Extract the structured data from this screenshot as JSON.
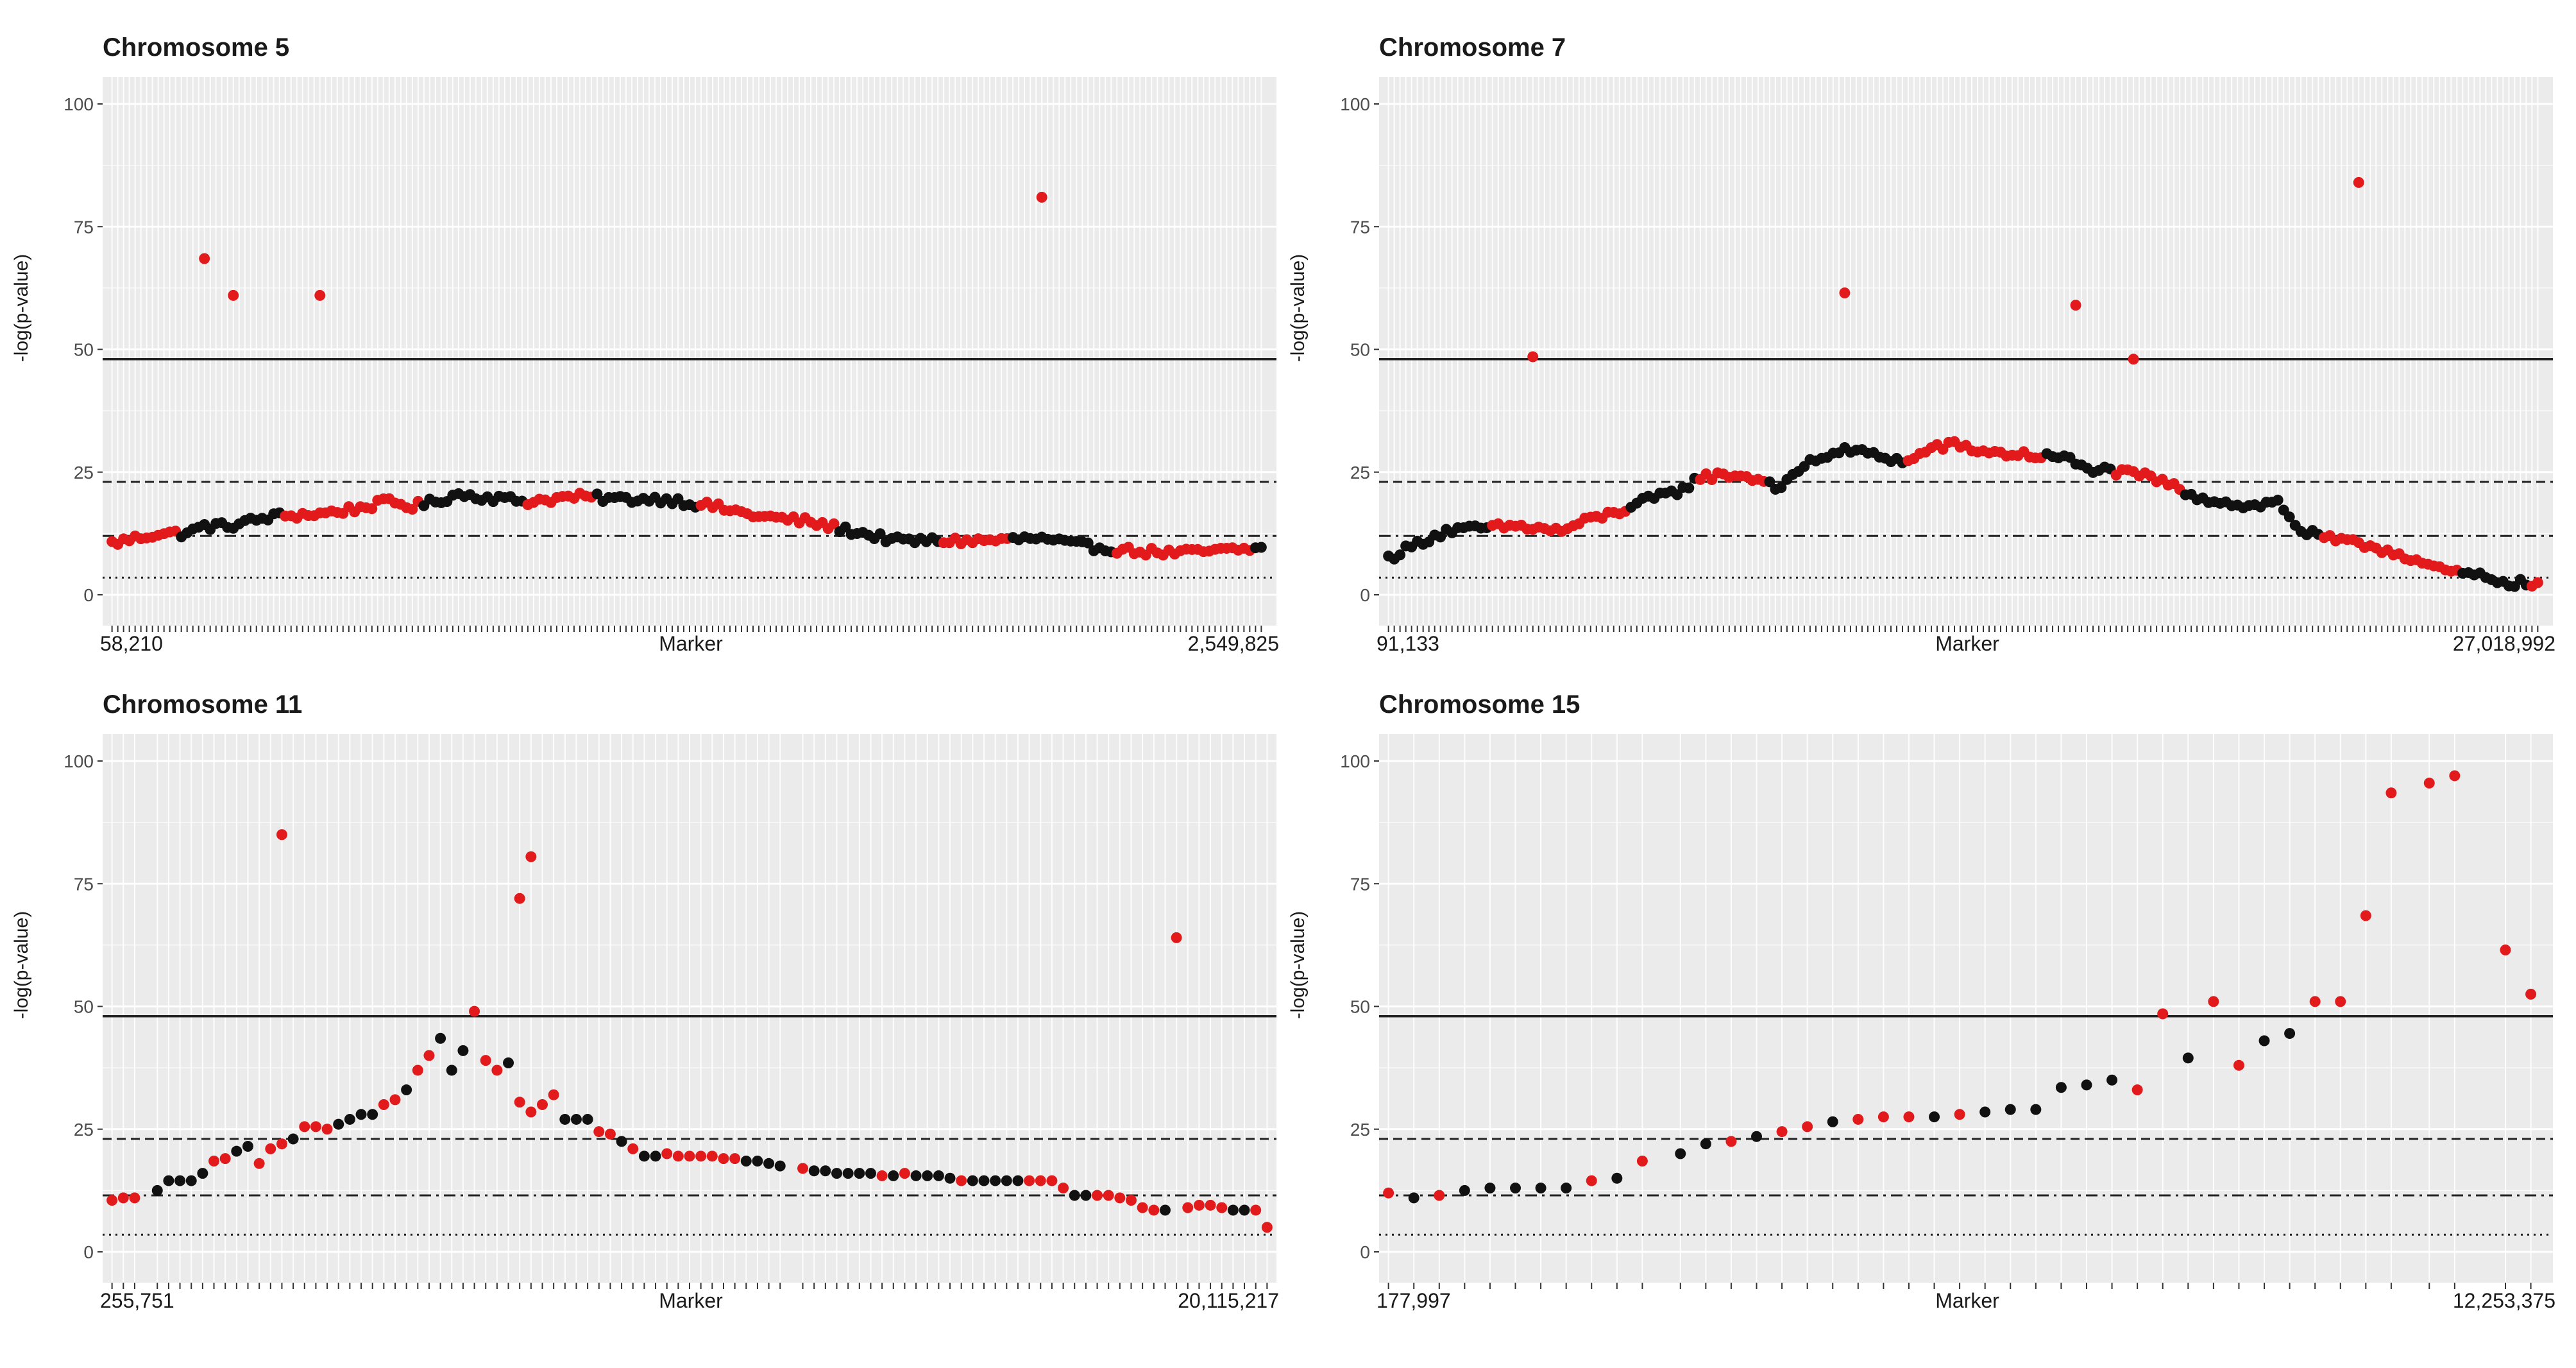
{
  "colors": {
    "panel_bg": "#ebebeb",
    "grid_major": "#ffffff",
    "significant": "#e31a1c",
    "nonsignificant": "#111111",
    "threshold_line": "#222222",
    "axis_text": "#4d4d4d"
  },
  "chart_data": [
    {
      "type": "scatter",
      "title": "Chromosome 5",
      "xlabel": "Marker",
      "ylabel": "-log(p-value)",
      "ylim": [
        0,
        100
      ],
      "yticks": [
        "0",
        "25",
        "50",
        "75",
        "100"
      ],
      "x_first_label": "58,210",
      "x_last_label": "2,549,825",
      "n_markers": 200,
      "thresholds": [
        {
          "style": "solid",
          "y": 48
        },
        {
          "style": "dashed",
          "y": 23
        },
        {
          "style": "dotdash",
          "y": 12
        },
        {
          "style": "dotted",
          "y": 3.5
        }
      ],
      "profile": [
        [
          0,
          10.5
        ],
        [
          4,
          11.5
        ],
        [
          8,
          12.5
        ],
        [
          12,
          12.5
        ],
        [
          14,
          13
        ],
        [
          16,
          14
        ],
        [
          20,
          14
        ],
        [
          24,
          15
        ],
        [
          28,
          16
        ],
        [
          36,
          16.5
        ],
        [
          42,
          17.5
        ],
        [
          48,
          19
        ],
        [
          52,
          18
        ],
        [
          56,
          19
        ],
        [
          60,
          20.5
        ],
        [
          64,
          20
        ],
        [
          72,
          19
        ],
        [
          80,
          20
        ],
        [
          88,
          19.5
        ],
        [
          96,
          19.5
        ],
        [
          104,
          18
        ],
        [
          112,
          16
        ],
        [
          120,
          15
        ],
        [
          128,
          13
        ],
        [
          132,
          12
        ],
        [
          136,
          11
        ],
        [
          150,
          11
        ],
        [
          160,
          11.5
        ],
        [
          168,
          10
        ],
        [
          176,
          9
        ],
        [
          184,
          8.5
        ],
        [
          200,
          9.5
        ]
      ],
      "profile_pattern": [
        1,
        1,
        0,
        0,
        0,
        1,
        1,
        1,
        1,
        0,
        0,
        0
      ],
      "outliers": [
        [
          16,
          68.5
        ],
        [
          21,
          61
        ],
        [
          36,
          61
        ],
        [
          161,
          81
        ]
      ]
    },
    {
      "type": "scatter",
      "title": "Chromosome 7",
      "xlabel": "Marker",
      "ylabel": "-log(p-value)",
      "ylim": [
        0,
        100
      ],
      "yticks": [
        "0",
        "25",
        "50",
        "75",
        "100"
      ],
      "x_first_label": "91,133",
      "x_last_label": "27,018,992",
      "n_markers": 200,
      "thresholds": [
        {
          "style": "solid",
          "y": 48
        },
        {
          "style": "dashed",
          "y": 23
        },
        {
          "style": "dotdash",
          "y": 12
        },
        {
          "style": "dotted",
          "y": 3.5
        }
      ],
      "profile": [
        [
          0,
          7.5
        ],
        [
          6,
          11
        ],
        [
          10,
          13
        ],
        [
          16,
          13.5
        ],
        [
          22,
          14
        ],
        [
          26,
          13.5
        ],
        [
          30,
          13
        ],
        [
          34,
          15
        ],
        [
          40,
          17
        ],
        [
          44,
          19
        ],
        [
          50,
          21
        ],
        [
          54,
          24
        ],
        [
          60,
          24.5
        ],
        [
          66,
          23
        ],
        [
          68,
          21.5
        ],
        [
          72,
          26.5
        ],
        [
          76,
          28.5
        ],
        [
          80,
          29.5
        ],
        [
          86,
          28
        ],
        [
          90,
          27
        ],
        [
          94,
          30
        ],
        [
          98,
          30.5
        ],
        [
          104,
          29
        ],
        [
          110,
          28.5
        ],
        [
          116,
          28
        ],
        [
          118,
          27.5
        ],
        [
          120,
          26
        ],
        [
          126,
          25
        ],
        [
          132,
          24
        ],
        [
          140,
          20
        ],
        [
          146,
          18.5
        ],
        [
          150,
          18
        ],
        [
          154,
          19
        ],
        [
          158,
          13
        ],
        [
          164,
          11
        ],
        [
          170,
          10
        ],
        [
          176,
          8
        ],
        [
          182,
          5
        ],
        [
          188,
          4
        ],
        [
          194,
          2.5
        ],
        [
          200,
          2
        ]
      ],
      "profile_pattern": [
        0,
        0,
        0,
        1,
        1,
        1,
        1,
        0,
        0,
        1,
        1,
        0
      ],
      "outliers": [
        [
          25,
          48.5
        ],
        [
          79,
          61.5
        ],
        [
          119,
          59
        ],
        [
          129,
          48
        ],
        [
          168,
          84
        ]
      ]
    },
    {
      "type": "scatter",
      "title": "Chromosome 11",
      "xlabel": "Marker",
      "ylabel": "-log(p-value)",
      "ylim": [
        0,
        100
      ],
      "yticks": [
        "0",
        "25",
        "50",
        "75",
        "100"
      ],
      "x_first_label": "255,751",
      "x_last_label": "20,115,217",
      "points": [
        [
          0,
          10.5,
          1
        ],
        [
          2,
          11,
          1
        ],
        [
          4,
          11,
          1
        ],
        [
          8,
          12.5,
          0
        ],
        [
          10,
          14.5,
          0
        ],
        [
          12,
          14.5,
          0
        ],
        [
          14,
          14.5,
          0
        ],
        [
          16,
          16,
          0
        ],
        [
          18,
          18.5,
          1
        ],
        [
          20,
          19,
          1
        ],
        [
          22,
          20.5,
          0
        ],
        [
          24,
          21.5,
          0
        ],
        [
          26,
          18,
          1
        ],
        [
          28,
          21,
          1
        ],
        [
          30,
          22,
          1
        ],
        [
          32,
          23,
          0
        ],
        [
          34,
          25.5,
          1
        ],
        [
          36,
          25.5,
          1
        ],
        [
          38,
          25,
          1
        ],
        [
          40,
          26,
          0
        ],
        [
          42,
          27,
          0
        ],
        [
          44,
          28,
          0
        ],
        [
          46,
          28,
          0
        ],
        [
          48,
          30,
          1
        ],
        [
          50,
          31,
          1
        ],
        [
          52,
          33,
          0
        ],
        [
          54,
          37,
          1
        ],
        [
          56,
          40,
          1
        ],
        [
          58,
          43.5,
          0
        ],
        [
          60,
          37,
          0
        ],
        [
          62,
          41,
          0
        ],
        [
          64,
          49,
          1
        ],
        [
          66,
          39,
          1
        ],
        [
          68,
          37,
          1
        ],
        [
          70,
          38.5,
          0
        ],
        [
          72,
          30.5,
          1
        ],
        [
          74,
          28.5,
          1
        ],
        [
          76,
          30,
          1
        ],
        [
          78,
          32,
          1
        ],
        [
          80,
          27,
          0
        ],
        [
          82,
          27,
          0
        ],
        [
          84,
          27,
          0
        ],
        [
          86,
          24.5,
          1
        ],
        [
          88,
          24,
          1
        ],
        [
          90,
          22.5,
          0
        ],
        [
          92,
          21,
          1
        ],
        [
          94,
          19.5,
          0
        ],
        [
          96,
          19.5,
          0
        ],
        [
          98,
          20,
          1
        ],
        [
          100,
          19.5,
          1
        ],
        [
          102,
          19.5,
          1
        ],
        [
          104,
          19.5,
          1
        ],
        [
          106,
          19.5,
          1
        ],
        [
          108,
          19,
          1
        ],
        [
          110,
          19,
          1
        ],
        [
          112,
          18.5,
          0
        ],
        [
          114,
          18.5,
          0
        ],
        [
          116,
          18,
          0
        ],
        [
          118,
          17.5,
          0
        ],
        [
          122,
          17,
          1
        ],
        [
          124,
          16.5,
          0
        ],
        [
          126,
          16.5,
          0
        ],
        [
          128,
          16,
          0
        ],
        [
          130,
          16,
          0
        ],
        [
          132,
          16,
          0
        ],
        [
          134,
          16,
          0
        ],
        [
          136,
          15.5,
          1
        ],
        [
          138,
          15.5,
          0
        ],
        [
          140,
          16,
          1
        ],
        [
          142,
          15.5,
          0
        ],
        [
          144,
          15.5,
          0
        ],
        [
          146,
          15.5,
          0
        ],
        [
          148,
          15,
          0
        ],
        [
          150,
          14.5,
          1
        ],
        [
          152,
          14.5,
          0
        ],
        [
          154,
          14.5,
          0
        ],
        [
          156,
          14.5,
          0
        ],
        [
          158,
          14.5,
          0
        ],
        [
          160,
          14.5,
          0
        ],
        [
          162,
          14.5,
          1
        ],
        [
          164,
          14.5,
          1
        ],
        [
          166,
          14.5,
          1
        ],
        [
          168,
          13,
          1
        ],
        [
          170,
          11.5,
          0
        ],
        [
          172,
          11.5,
          0
        ],
        [
          174,
          11.5,
          1
        ],
        [
          176,
          11.5,
          1
        ],
        [
          178,
          11,
          1
        ],
        [
          180,
          10.5,
          1
        ],
        [
          182,
          9,
          1
        ],
        [
          184,
          8.5,
          1
        ],
        [
          186,
          8.5,
          0
        ],
        [
          190,
          9,
          1
        ],
        [
          192,
          9.5,
          1
        ],
        [
          194,
          9.5,
          1
        ],
        [
          196,
          9,
          1
        ],
        [
          198,
          8.5,
          0
        ],
        [
          200,
          8.5,
          0
        ],
        [
          202,
          8.5,
          1
        ],
        [
          204,
          5,
          1
        ],
        [
          30,
          85,
          1
        ],
        [
          72,
          72,
          1
        ],
        [
          74,
          80.5,
          1
        ],
        [
          188,
          64,
          1
        ]
      ],
      "xlim": [
        0,
        204
      ],
      "thresholds": [
        {
          "style": "solid",
          "y": 48
        },
        {
          "style": "dashed",
          "y": 23
        },
        {
          "style": "dotdash",
          "y": 11.5
        },
        {
          "style": "dotted",
          "y": 3.5
        }
      ]
    },
    {
      "type": "scatter",
      "title": "Chromosome 15",
      "xlabel": "Marker",
      "ylabel": "-log(p-value)",
      "ylim": [
        0,
        100
      ],
      "yticks": [
        "0",
        "25",
        "50",
        "75",
        "100"
      ],
      "x_first_label": "177,997",
      "x_last_label": "12,253,375",
      "points": [
        [
          0,
          12,
          1
        ],
        [
          2,
          11,
          0
        ],
        [
          4,
          11.5,
          1
        ],
        [
          6,
          12.5,
          0
        ],
        [
          8,
          13,
          0
        ],
        [
          10,
          13,
          0
        ],
        [
          12,
          13,
          0
        ],
        [
          14,
          13,
          0
        ],
        [
          16,
          14.5,
          1
        ],
        [
          18,
          15,
          0
        ],
        [
          20,
          18.5,
          1
        ],
        [
          23,
          20,
          0
        ],
        [
          25,
          22,
          0
        ],
        [
          27,
          22.5,
          1
        ],
        [
          29,
          23.5,
          0
        ],
        [
          31,
          24.5,
          1
        ],
        [
          33,
          25.5,
          1
        ],
        [
          35,
          26.5,
          0
        ],
        [
          37,
          27,
          1
        ],
        [
          39,
          27.5,
          1
        ],
        [
          41,
          27.5,
          1
        ],
        [
          43,
          27.5,
          0
        ],
        [
          45,
          28,
          1
        ],
        [
          47,
          28.5,
          0
        ],
        [
          49,
          29,
          0
        ],
        [
          51,
          29,
          0
        ],
        [
          53,
          33.5,
          0
        ],
        [
          55,
          34,
          0
        ],
        [
          57,
          35,
          0
        ],
        [
          59,
          33,
          1
        ],
        [
          61,
          48.5,
          1
        ],
        [
          63,
          39.5,
          0
        ],
        [
          65,
          51,
          1
        ],
        [
          67,
          38,
          1
        ],
        [
          69,
          43,
          0
        ],
        [
          71,
          44.5,
          0
        ],
        [
          73,
          51,
          1
        ],
        [
          75,
          51,
          1
        ],
        [
          77,
          68.5,
          1
        ],
        [
          79,
          93.5,
          1
        ],
        [
          82,
          95.5,
          1
        ],
        [
          84,
          97,
          1
        ],
        [
          88,
          61.5,
          1
        ],
        [
          90,
          52.5,
          1
        ]
      ],
      "xlim": [
        0,
        91
      ],
      "thresholds": [
        {
          "style": "solid",
          "y": 48
        },
        {
          "style": "dashed",
          "y": 23
        },
        {
          "style": "dotdash",
          "y": 11.5
        },
        {
          "style": "dotted",
          "y": 3.5
        }
      ]
    }
  ]
}
